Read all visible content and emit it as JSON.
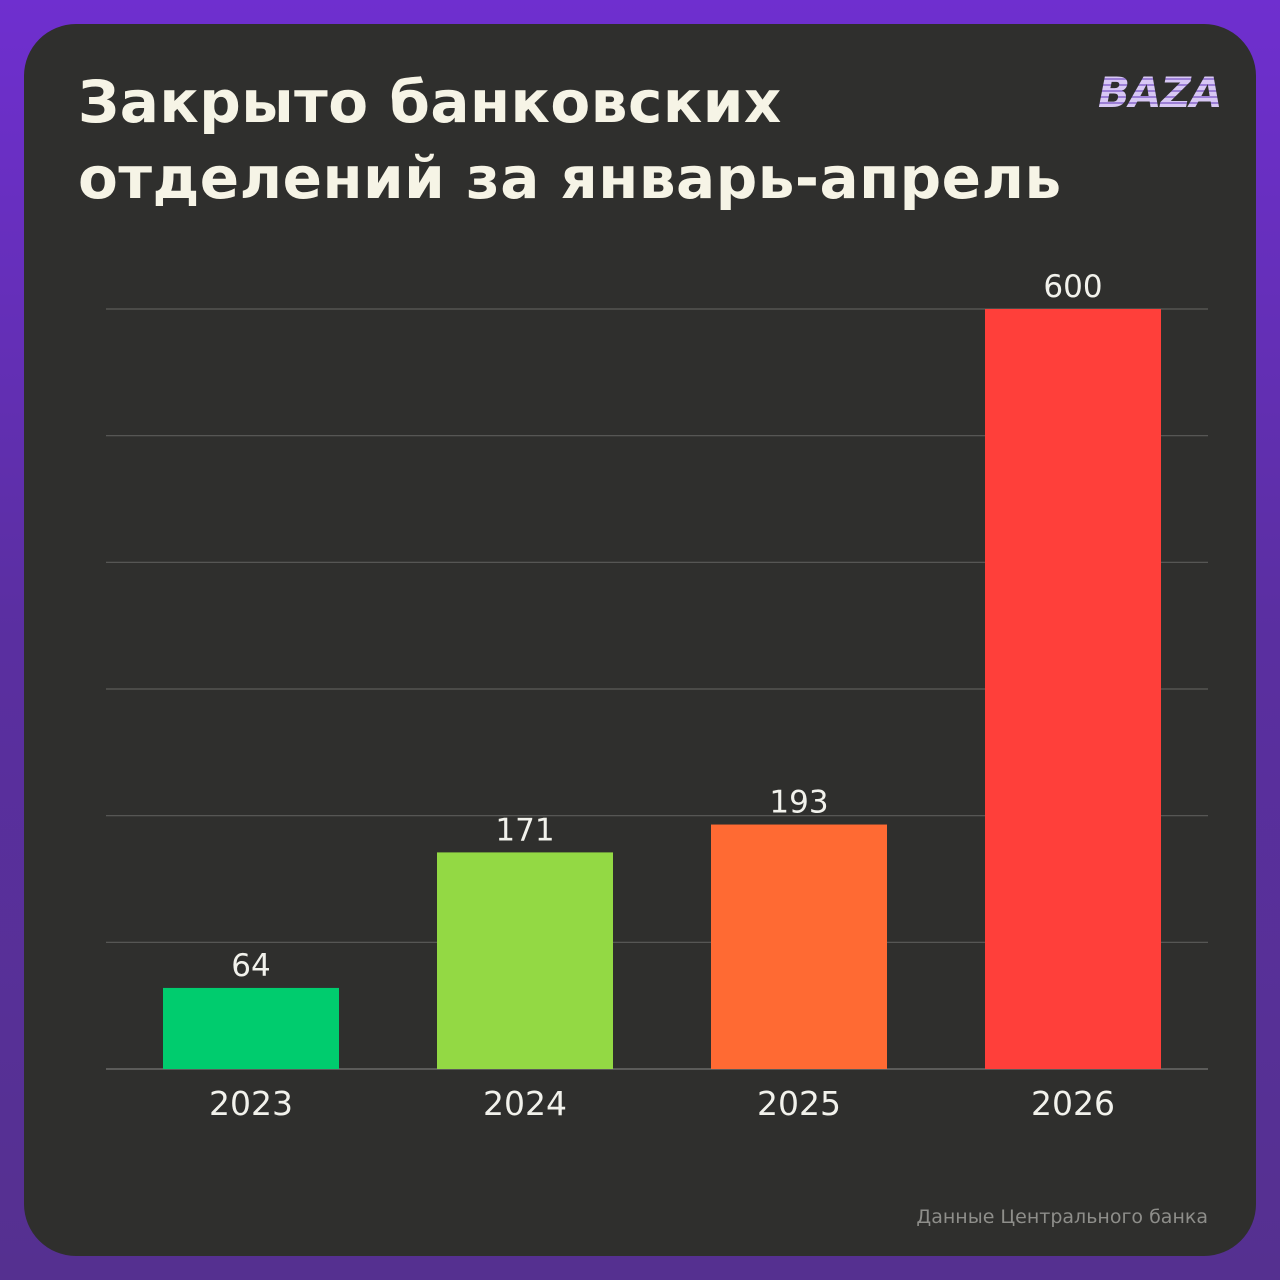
{
  "header": {
    "title": "Закрыто банковских отделений за январь-апрель",
    "logo": "BAZA"
  },
  "footer": {
    "source": "Данные Центрального банка"
  },
  "chart_data": {
    "type": "bar",
    "title": "Закрыто банковских отделений за январь-апрель",
    "xlabel": "",
    "ylabel": "",
    "categories": [
      "2023",
      "2024",
      "2025",
      "2026"
    ],
    "values": [
      64,
      171,
      193,
      600
    ],
    "colors": [
      "#00cc6e",
      "#93d944",
      "#ff6a33",
      "#ff3f3a"
    ],
    "ylim": [
      0,
      600
    ],
    "gridlines": 6,
    "grid": true,
    "legend": "none",
    "data_labels": true
  },
  "colors": {
    "background": "#6f2fcf",
    "card": "#2f2f2d",
    "title": "#f6f4e6"
  }
}
